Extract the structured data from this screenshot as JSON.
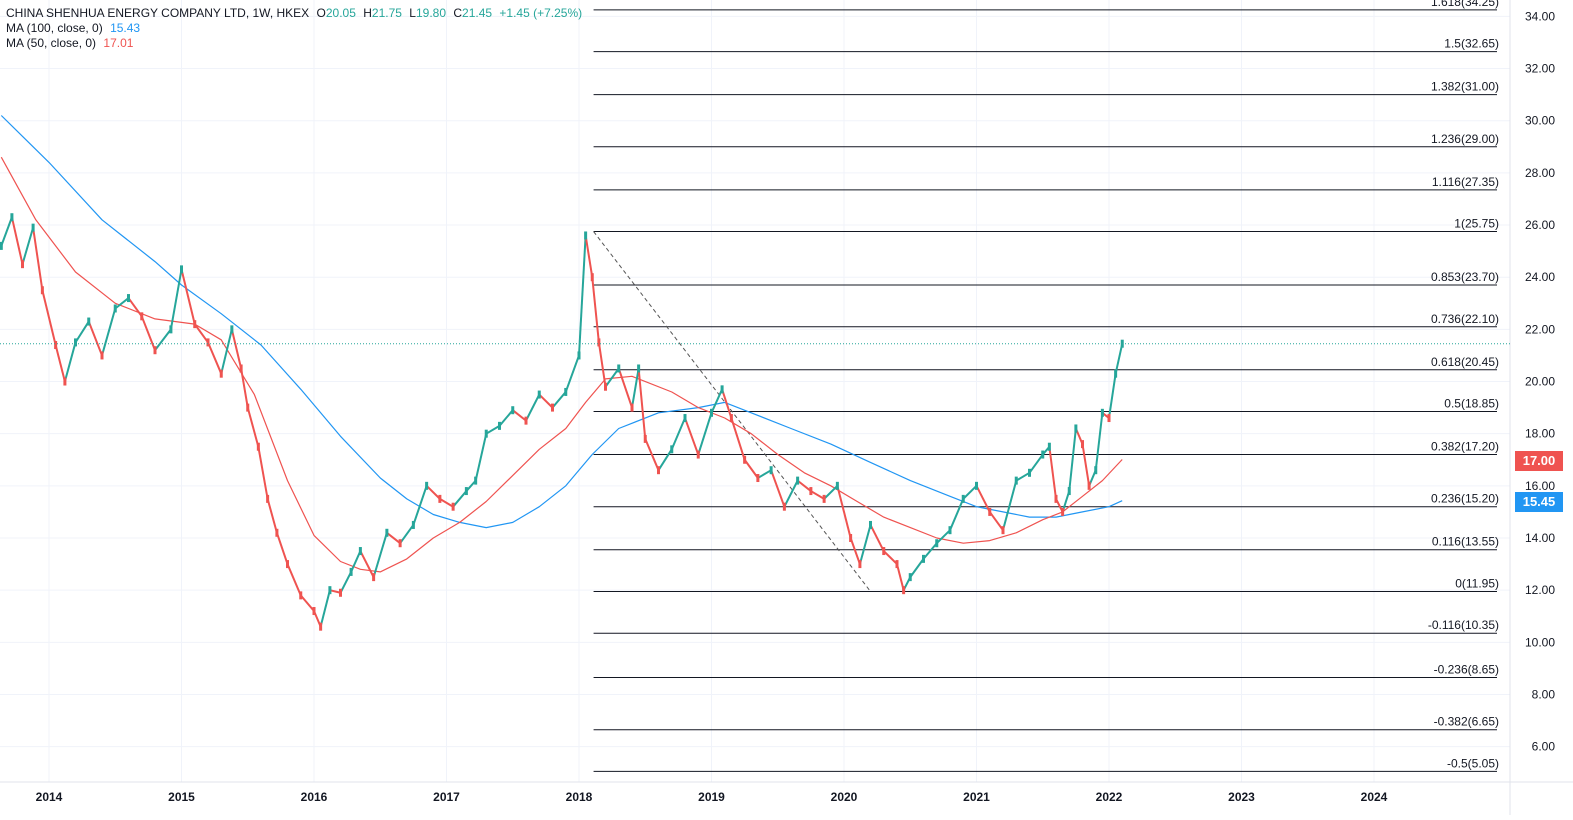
{
  "legend": {
    "symbol": "CHINA SHENHUA ENERGY COMPANY LTD, 1W, HKEX",
    "o_label": "O",
    "o_value": "20.05",
    "h_label": "H",
    "h_value": "21.75",
    "l_label": "L",
    "l_value": "19.80",
    "c_label": "C",
    "c_value": "21.45",
    "change": "+1.45 (+7.25%)",
    "ma100_label": "MA (100, close, 0)",
    "ma100_value": "15.43",
    "ma50_label": "MA (50, close, 0)",
    "ma50_value": "17.01"
  },
  "price_tags": {
    "ma50": "17.00",
    "ma100": "15.45"
  },
  "colors": {
    "up": "#26a69a",
    "down": "#ef5350",
    "ma100": "#2196f3",
    "ma50": "#ef5350",
    "fib_line": "#131722",
    "grid": "#f0f3fa"
  },
  "chart_data": {
    "type": "line",
    "title": "CHINA SHENHUA ENERGY COMPANY LTD, 1W, HKEX",
    "xlabel": "",
    "ylabel": "",
    "x_ticks": [
      "2014",
      "2015",
      "2016",
      "2017",
      "2018",
      "2019",
      "2020",
      "2021",
      "2022",
      "2023",
      "2024"
    ],
    "y_ticks": [
      "6.00",
      "8.00",
      "10.00",
      "12.00",
      "14.00",
      "16.00",
      "18.00",
      "20.00",
      "22.00",
      "24.00",
      "26.00",
      "28.00",
      "30.00",
      "32.00",
      "34.00"
    ],
    "ylim": [
      4.6,
      34.7
    ],
    "xlim": [
      2013.63,
      2025.0
    ],
    "grid": true,
    "last_close": 21.45,
    "price_series": {
      "name": "CHINA SHENHUA ENERGY COMPANY LTD",
      "x": [
        2013.64,
        2013.72,
        2013.8,
        2013.88,
        2013.95,
        2014.05,
        2014.12,
        2014.2,
        2014.3,
        2014.4,
        2014.5,
        2014.6,
        2014.7,
        2014.8,
        2014.92,
        2015.0,
        2015.1,
        2015.2,
        2015.3,
        2015.38,
        2015.45,
        2015.5,
        2015.58,
        2015.65,
        2015.72,
        2015.8,
        2015.9,
        2016.0,
        2016.05,
        2016.12,
        2016.2,
        2016.28,
        2016.35,
        2016.45,
        2016.55,
        2016.65,
        2016.75,
        2016.85,
        2016.95,
        2017.05,
        2017.15,
        2017.22,
        2017.3,
        2017.4,
        2017.5,
        2017.6,
        2017.7,
        2017.8,
        2017.9,
        2018.0,
        2018.05,
        2018.1,
        2018.15,
        2018.2,
        2018.3,
        2018.4,
        2018.45,
        2018.5,
        2018.6,
        2018.7,
        2018.8,
        2018.9,
        2019.0,
        2019.08,
        2019.15,
        2019.25,
        2019.35,
        2019.45,
        2019.55,
        2019.65,
        2019.75,
        2019.85,
        2019.95,
        2020.05,
        2020.12,
        2020.2,
        2020.3,
        2020.4,
        2020.45,
        2020.5,
        2020.6,
        2020.7,
        2020.8,
        2020.9,
        2021.0,
        2021.1,
        2021.2,
        2021.3,
        2021.4,
        2021.5,
        2021.55,
        2021.6,
        2021.65,
        2021.7,
        2021.75,
        2021.8,
        2021.85,
        2021.9,
        2021.95,
        2022.0,
        2022.05,
        2022.1
      ],
      "values": [
        25.2,
        26.3,
        24.5,
        25.9,
        23.5,
        21.4,
        20.0,
        21.5,
        22.3,
        21.0,
        22.8,
        23.2,
        22.5,
        21.2,
        22.0,
        24.3,
        22.2,
        21.5,
        20.3,
        22.0,
        20.5,
        19.0,
        17.5,
        15.5,
        14.2,
        13.0,
        11.8,
        11.2,
        10.6,
        12.0,
        11.9,
        12.7,
        13.5,
        12.5,
        14.2,
        13.8,
        14.5,
        16.0,
        15.5,
        15.2,
        15.8,
        16.2,
        18.0,
        18.3,
        18.9,
        18.5,
        19.5,
        19.0,
        19.6,
        21.0,
        25.6,
        24.0,
        21.5,
        19.8,
        20.5,
        19.0,
        20.5,
        17.8,
        16.6,
        17.4,
        18.6,
        17.2,
        18.8,
        19.7,
        18.6,
        17.0,
        16.3,
        16.6,
        15.2,
        16.2,
        15.8,
        15.5,
        16.0,
        14.0,
        13.0,
        14.5,
        13.5,
        13.0,
        12.0,
        12.5,
        13.2,
        13.8,
        14.3,
        15.5,
        16.0,
        15.0,
        14.3,
        16.2,
        16.5,
        17.2,
        17.5,
        15.5,
        15.0,
        15.8,
        18.2,
        17.6,
        16.0,
        16.6,
        18.8,
        18.6,
        20.3,
        21.45
      ]
    },
    "ma100_series": {
      "name": "MA (100, close, 0)",
      "x": [
        2013.64,
        2014.0,
        2014.4,
        2014.8,
        2015.0,
        2015.3,
        2015.6,
        2015.9,
        2016.2,
        2016.5,
        2016.7,
        2016.9,
        2017.1,
        2017.3,
        2017.5,
        2017.7,
        2017.9,
        2018.1,
        2018.3,
        2018.6,
        2018.9,
        2019.1,
        2019.3,
        2019.6,
        2019.9,
        2020.2,
        2020.5,
        2020.8,
        2021.0,
        2021.2,
        2021.4,
        2021.6,
        2021.8,
        2022.0,
        2022.1
      ],
      "values": [
        30.2,
        28.4,
        26.2,
        24.6,
        23.7,
        22.6,
        21.4,
        19.7,
        17.9,
        16.3,
        15.5,
        14.9,
        14.6,
        14.4,
        14.6,
        15.2,
        16.0,
        17.2,
        18.2,
        18.8,
        19.0,
        19.2,
        18.8,
        18.2,
        17.6,
        16.9,
        16.2,
        15.6,
        15.2,
        15.0,
        14.8,
        14.8,
        15.0,
        15.2,
        15.43
      ]
    },
    "ma50_series": {
      "name": "MA (50, close, 0)",
      "x": [
        2013.64,
        2013.9,
        2014.2,
        2014.5,
        2014.8,
        2015.1,
        2015.3,
        2015.55,
        2015.8,
        2016.0,
        2016.2,
        2016.35,
        2016.5,
        2016.7,
        2016.9,
        2017.1,
        2017.3,
        2017.5,
        2017.7,
        2017.9,
        2018.05,
        2018.2,
        2018.4,
        2018.7,
        2018.9,
        2019.1,
        2019.3,
        2019.5,
        2019.7,
        2019.9,
        2020.1,
        2020.3,
        2020.5,
        2020.7,
        2020.9,
        2021.1,
        2021.3,
        2021.5,
        2021.65,
        2021.8,
        2021.95,
        2022.1
      ],
      "values": [
        28.6,
        26.2,
        24.2,
        23.0,
        22.4,
        22.2,
        21.6,
        19.5,
        16.2,
        14.1,
        13.1,
        12.8,
        12.7,
        13.2,
        14.0,
        14.6,
        15.4,
        16.4,
        17.4,
        18.2,
        19.2,
        20.1,
        20.2,
        19.6,
        19.0,
        18.6,
        18.0,
        17.2,
        16.5,
        16.0,
        15.4,
        14.8,
        14.4,
        14.0,
        13.8,
        13.9,
        14.2,
        14.7,
        15.0,
        15.6,
        16.2,
        17.01
      ]
    },
    "fibonacci": {
      "anchor_high": {
        "x": 2018.11,
        "value": 25.75
      },
      "anchor_low": {
        "x": 2020.2,
        "value": 11.95
      },
      "levels": [
        {
          "label": "1.618(34.25)",
          "value": 34.25
        },
        {
          "label": "1.5(32.65)",
          "value": 32.65
        },
        {
          "label": "1.382(31.00)",
          "value": 31.0
        },
        {
          "label": "1.236(29.00)",
          "value": 29.0
        },
        {
          "label": "1.116(27.35)",
          "value": 27.35
        },
        {
          "label": "1(25.75)",
          "value": 25.75
        },
        {
          "label": "0.853(23.70)",
          "value": 23.7
        },
        {
          "label": "0.736(22.10)",
          "value": 22.1
        },
        {
          "label": "0.618(20.45)",
          "value": 20.45
        },
        {
          "label": "0.5(18.85)",
          "value": 18.85
        },
        {
          "label": "0.382(17.20)",
          "value": 17.2
        },
        {
          "label": "0.236(15.20)",
          "value": 15.2
        },
        {
          "label": "0.116(13.55)",
          "value": 13.55
        },
        {
          "label": "0(11.95)",
          "value": 11.95
        },
        {
          "label": "-0.116(10.35)",
          "value": 10.35
        },
        {
          "label": "-0.236(8.65)",
          "value": 8.65
        },
        {
          "label": "-0.382(6.65)",
          "value": 6.65
        },
        {
          "label": "-0.5(5.05)",
          "value": 5.05
        }
      ]
    }
  }
}
